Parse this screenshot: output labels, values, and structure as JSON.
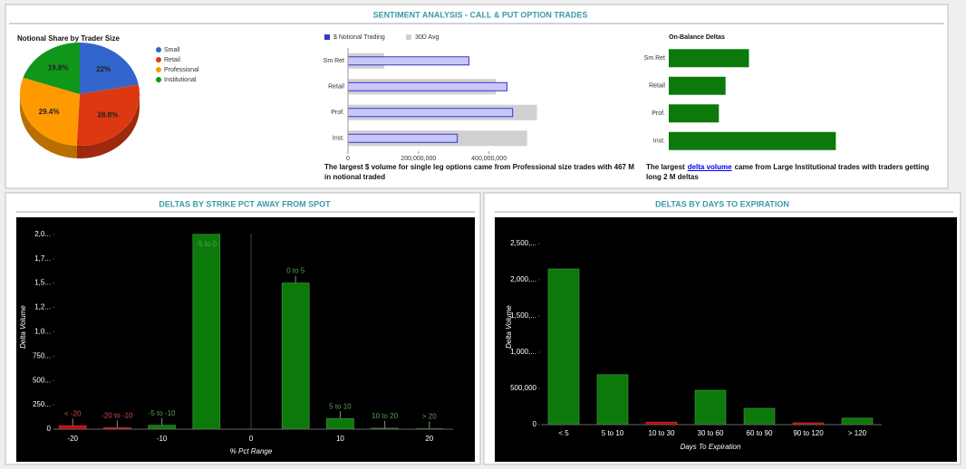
{
  "panel_titles": [
    "SENTIMENT ANALYSIS - CALL & PUT OPTION TRADES",
    "DELTAS BY STRIKE PCT AWAY FROM SPOT",
    "DELTAS BY DAYS TO EXPIRATION"
  ],
  "chart_data": [
    {
      "type": "pie",
      "title": "Notional Share by Trader Size",
      "categories": [
        "Small",
        "Retail",
        "Professional",
        "Institutional"
      ],
      "values": [
        22,
        28.8,
        29.4,
        19.8
      ],
      "value_labels": [
        "22%",
        "28.8%",
        "29.4%",
        "19.8%"
      ],
      "colors": [
        "#3366cc",
        "#dc3912",
        "#ff9900",
        "#109618"
      ]
    },
    {
      "type": "hbar",
      "categories": [
        "Sm Ret",
        "Retail",
        "Prof.",
        "Inst."
      ],
      "series": [
        {
          "name": "$ Notional Trading",
          "color": "#c8c8f8",
          "values": [
            343000000,
            451000000,
            467000000,
            310000000
          ]
        },
        {
          "name": "30D Avg",
          "color": "#d0d0d0",
          "values": [
            103000000,
            420000000,
            536000000,
            508000000
          ]
        }
      ],
      "xlim": [
        0,
        550000000
      ],
      "xticks": [
        0,
        {
          "value": 200000000,
          "label": "200,000,000"
        },
        {
          "value": 400000000,
          "label": "400,000,000"
        }
      ],
      "caption": "The largest $ volume for single leg options came from Professional size trades with 467 M in notional traded"
    },
    {
      "type": "hbar",
      "title": "On-Balance Deltas",
      "categories": [
        "Sm Ret",
        "Retail",
        "Prof.",
        "Inst."
      ],
      "values": [
        960000,
        680000,
        600000,
        2000000
      ],
      "color": "#0b7a0b",
      "xlim": [
        0,
        2300000
      ],
      "caption_parts": [
        "The largest",
        "delta volume",
        "came from Large Institutional trades with traders getting long 2 M deltas"
      ]
    },
    {
      "type": "bar",
      "x": [
        -20,
        -15,
        -10,
        -5,
        5,
        10,
        15,
        20
      ],
      "annotations": [
        "< -20",
        "-20 to -10",
        "-5 to -10",
        "-5 to 0",
        "0 to 5",
        "5 to 10",
        "10 to 20",
        "> 20"
      ],
      "values": [
        35,
        15,
        40,
        2000,
        1500,
        110,
        10,
        5
      ],
      "colors": [
        "#cc0000",
        "#cc0000",
        "#0b7a0b",
        "#0b7a0b",
        "#0b7a0b",
        "#0b7a0b",
        "#0b7a0b",
        "#0b7a0b"
      ],
      "xlim": [
        -25,
        25
      ],
      "xticks": [
        -20,
        -10,
        0,
        10,
        20
      ],
      "ylim": [
        0,
        2100
      ],
      "yticks": [
        0,
        {
          "value": 250,
          "label": "250..."
        },
        {
          "value": 500,
          "label": "500..."
        },
        {
          "value": 750,
          "label": "750..."
        },
        {
          "value": 1000,
          "label": "1,0..."
        },
        {
          "value": 1250,
          "label": "1,2..."
        },
        {
          "value": 1500,
          "label": "1,5..."
        },
        {
          "value": 1750,
          "label": "1,7..."
        },
        {
          "value": 2000,
          "label": "2,0..."
        }
      ],
      "xlabel": "% Pct Range",
      "ylabel": "Delta Volume"
    },
    {
      "type": "bar",
      "categories": [
        "< 5",
        "5 to 10",
        "10 to 30",
        "30 to 60",
        "60 to 90",
        "90 to 120",
        "> 120"
      ],
      "values": [
        2150000,
        690000,
        35000,
        475000,
        225000,
        25000,
        90000
      ],
      "colors": [
        "#0b7a0b",
        "#0b7a0b",
        "#cc0000",
        "#0b7a0b",
        "#0b7a0b",
        "#cc0000",
        "#0b7a0b"
      ],
      "ylim": [
        0,
        2700000
      ],
      "yticks": [
        0,
        {
          "value": 500000,
          "label": "500,000"
        },
        {
          "value": 1000000,
          "label": "1,000,..."
        },
        {
          "value": 1500000,
          "label": "1,500,..."
        },
        {
          "value": 2000000,
          "label": "2,000,..."
        },
        {
          "value": 2500000,
          "label": "2,500,..."
        }
      ],
      "xlabel": "Days To Expiration",
      "ylabel": "Delta Volume"
    }
  ]
}
